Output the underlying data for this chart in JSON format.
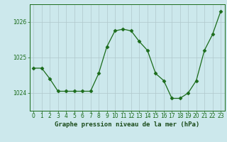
{
  "x": [
    0,
    1,
    2,
    3,
    4,
    5,
    6,
    7,
    8,
    9,
    10,
    11,
    12,
    13,
    14,
    15,
    16,
    17,
    18,
    19,
    20,
    21,
    22,
    23
  ],
  "y": [
    1024.7,
    1024.7,
    1024.4,
    1024.05,
    1024.05,
    1024.05,
    1024.05,
    1024.05,
    1024.55,
    1025.3,
    1025.75,
    1025.8,
    1025.75,
    1025.45,
    1025.2,
    1024.55,
    1024.35,
    1023.85,
    1023.85,
    1024.0,
    1024.35,
    1025.2,
    1025.65,
    1026.3
  ],
  "line_color": "#1a6b1a",
  "marker": "D",
  "marker_size": 2.5,
  "bg_color": "#cce8ec",
  "grid_color": "#b0c8cc",
  "xlabel": "Graphe pression niveau de la mer (hPa)",
  "xlabel_color": "#1a4b1a",
  "ylim": [
    1023.5,
    1026.5
  ],
  "yticks": [
    1024,
    1025,
    1026
  ],
  "axis_color": "#1a6b1a",
  "tick_label_fontsize": 5.5,
  "xlabel_fontsize": 6.5
}
